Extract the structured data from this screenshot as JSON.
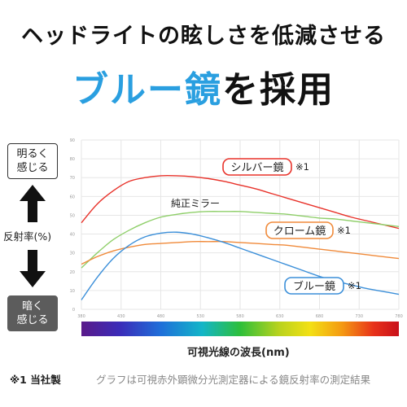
{
  "header": {
    "headline": "ヘッドライトの眩しさを低減させる",
    "title_blue": "ブルー鏡",
    "title_black": "を採用"
  },
  "side": {
    "bright_label": "明るく\n感じる",
    "dark_label": "暗く\n感じる",
    "axis_label": "反射率(%)"
  },
  "footer": {
    "note_left": "※1 当社製",
    "note_right": "グラフは可視赤外顕微分光測定器による鏡反射率の測定結果"
  },
  "chart_data": {
    "type": "line",
    "xlabel": "可視光線の波長(nm)",
    "ylabel": "反射率(%)",
    "xlim": [
      380,
      780
    ],
    "ylim": [
      0,
      90
    ],
    "x_ticks": [
      380,
      430,
      480,
      530,
      580,
      630,
      680,
      730,
      780
    ],
    "y_ticks": [
      0,
      10,
      20,
      30,
      40,
      50,
      60,
      70,
      80,
      90
    ],
    "grid": true,
    "series": [
      {
        "name": "シルバー鏡",
        "note": "※1",
        "color": "#e8322a",
        "x": [
          380,
          400,
          420,
          440,
          460,
          480,
          500,
          520,
          540,
          560,
          580,
          600,
          620,
          640,
          660,
          680,
          700,
          720,
          740,
          760,
          780
        ],
        "values": [
          46,
          56,
          63,
          68,
          70,
          71,
          71,
          70.5,
          69.5,
          68,
          66,
          64,
          61.5,
          59,
          56.5,
          54,
          51.5,
          49,
          47,
          45,
          43
        ]
      },
      {
        "name": "純正ミラー",
        "color": "#8fcf6a",
        "x": [
          380,
          400,
          420,
          440,
          460,
          480,
          500,
          520,
          540,
          560,
          580,
          600,
          620,
          640,
          660,
          680,
          700,
          720,
          740,
          760,
          780
        ],
        "values": [
          22,
          30,
          37,
          42,
          46,
          49,
          50.5,
          51.5,
          52,
          52,
          52,
          51.5,
          51,
          50.5,
          49.5,
          48.5,
          48,
          47,
          46,
          45,
          44
        ]
      },
      {
        "name": "クローム鏡",
        "note": "※1",
        "color": "#f08a3a",
        "x": [
          380,
          400,
          420,
          440,
          460,
          480,
          500,
          520,
          540,
          560,
          580,
          600,
          620,
          640,
          660,
          680,
          700,
          720,
          740,
          760,
          780
        ],
        "values": [
          24,
          28,
          31,
          33,
          34.5,
          35,
          35.5,
          36,
          36,
          36,
          35.5,
          35,
          34.5,
          34,
          33,
          32,
          31,
          30,
          29,
          28,
          27
        ]
      },
      {
        "name": "ブルー鏡",
        "note": "※1",
        "color": "#3b8fd9",
        "x": [
          380,
          400,
          420,
          440,
          460,
          480,
          500,
          520,
          540,
          560,
          580,
          600,
          620,
          640,
          660,
          680,
          700,
          720,
          740,
          760,
          780
        ],
        "values": [
          5,
          17,
          27,
          34,
          38.5,
          40.5,
          41,
          40,
          38,
          35.5,
          32.5,
          29.5,
          26.5,
          23.5,
          20.5,
          17.5,
          15,
          13,
          11,
          9.5,
          8
        ]
      }
    ]
  }
}
